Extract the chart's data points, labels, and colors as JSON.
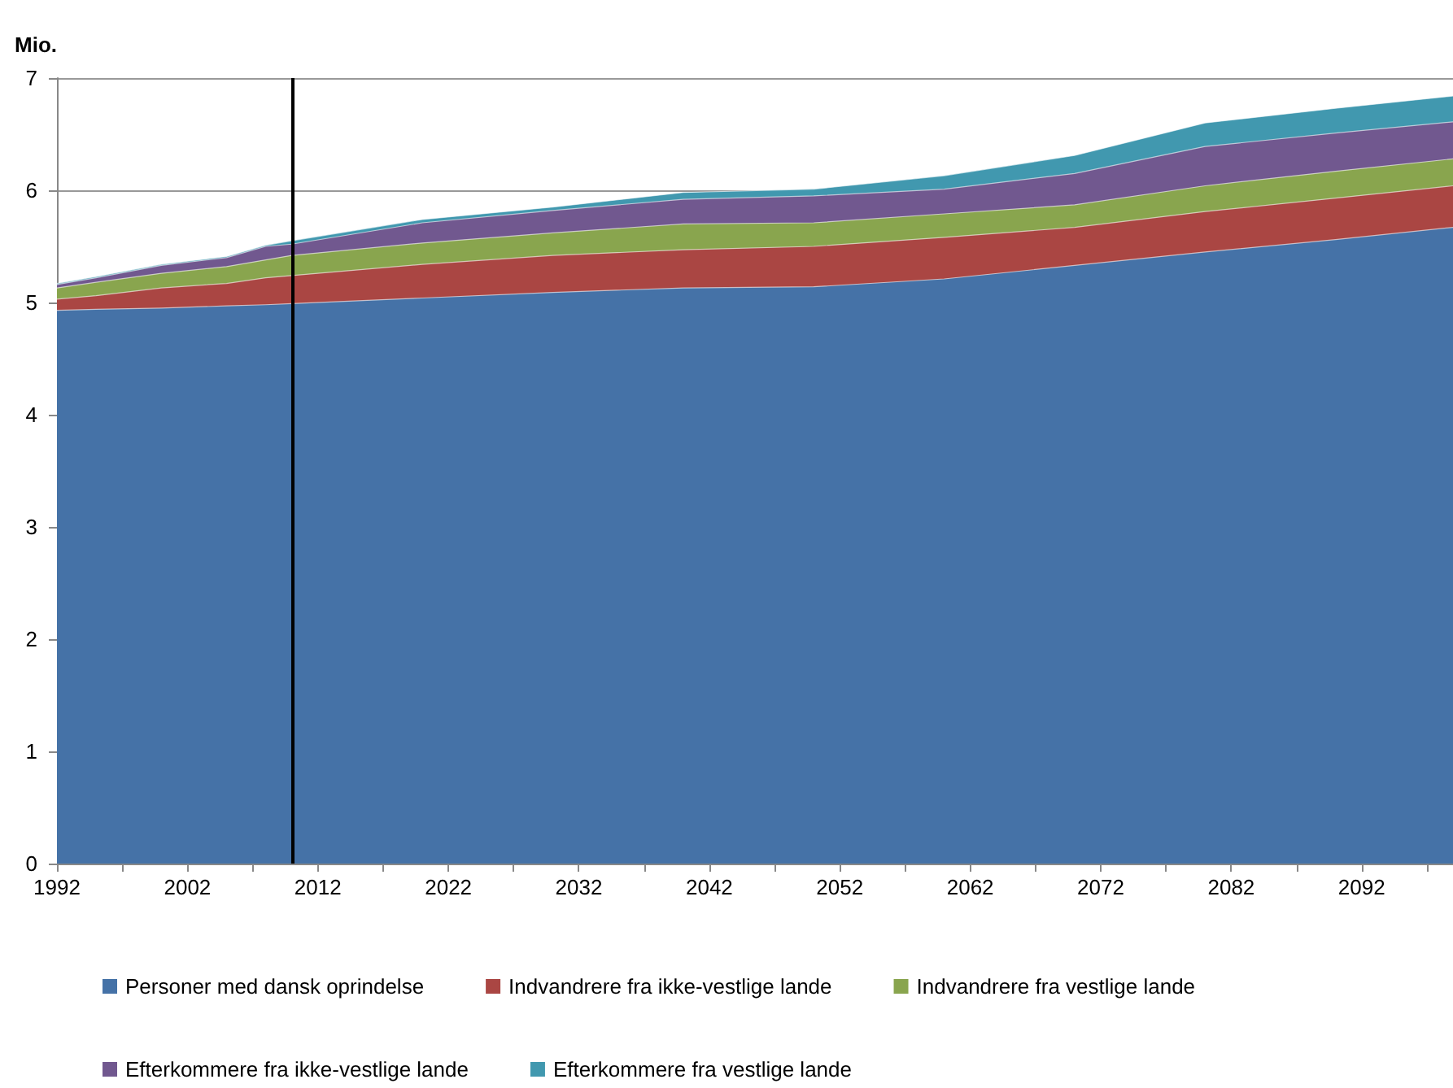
{
  "chart_data": {
    "type": "area",
    "stacked": true,
    "ylabel": "Mio.",
    "x": [
      1992,
      1995,
      2000,
      2005,
      2008,
      2010,
      2020,
      2030,
      2040,
      2050,
      2060,
      2070,
      2080,
      2090,
      2099
    ],
    "series": [
      {
        "name": "Personer med dansk oprindelse",
        "color": "#4572a7",
        "values": [
          4.93,
          4.94,
          4.95,
          4.97,
          4.98,
          4.99,
          5.04,
          5.09,
          5.13,
          5.14,
          5.21,
          5.33,
          5.45,
          5.56,
          5.67
        ]
      },
      {
        "name": "Indvandrere fra ikke-vestlige lande",
        "color": "#aa4643",
        "values": [
          0.1,
          0.12,
          0.18,
          0.2,
          0.24,
          0.25,
          0.3,
          0.33,
          0.34,
          0.36,
          0.37,
          0.34,
          0.36,
          0.37,
          0.37
        ]
      },
      {
        "name": "Indvandrere fra vestlige lande",
        "color": "#89a54e",
        "values": [
          0.1,
          0.12,
          0.13,
          0.15,
          0.16,
          0.18,
          0.19,
          0.2,
          0.23,
          0.21,
          0.21,
          0.2,
          0.23,
          0.24,
          0.24
        ]
      },
      {
        "name": "Efterkommere fra ikke-vestlige lande",
        "color": "#71588f",
        "values": [
          0.03,
          0.04,
          0.07,
          0.08,
          0.12,
          0.1,
          0.18,
          0.2,
          0.22,
          0.24,
          0.22,
          0.28,
          0.35,
          0.34,
          0.33
        ]
      },
      {
        "name": "Efterkommere fra vestlige lande",
        "color": "#4198af",
        "values": [
          0.01,
          0.01,
          0.01,
          0.01,
          0.01,
          0.03,
          0.03,
          0.03,
          0.06,
          0.06,
          0.12,
          0.16,
          0.21,
          0.22,
          0.23
        ]
      }
    ],
    "xlim": [
      1992,
      2099
    ],
    "xticks": [
      1992,
      {
        "value": 1997,
        "label": null
      },
      2002,
      {
        "value": 2007,
        "label": null
      },
      2012,
      {
        "value": 2017,
        "label": null
      },
      2022,
      {
        "value": 2027,
        "label": null
      },
      2032,
      {
        "value": 2037,
        "label": null
      },
      2042,
      {
        "value": 2047,
        "label": null
      },
      2052,
      {
        "value": 2057,
        "label": null
      },
      2062,
      {
        "value": 2067,
        "label": null
      },
      2072,
      {
        "value": 2077,
        "label": null
      },
      2082,
      {
        "value": 2087,
        "label": null
      },
      2092,
      {
        "value": 2097,
        "label": null
      }
    ],
    "ylim": [
      0,
      7
    ],
    "yticks": [
      0,
      1,
      2,
      3,
      4,
      5,
      6,
      7
    ],
    "ref_lines": [
      {
        "axis": "x",
        "value": 2010,
        "color": "#000000"
      }
    ],
    "grid": "y",
    "legend": "bottom"
  }
}
